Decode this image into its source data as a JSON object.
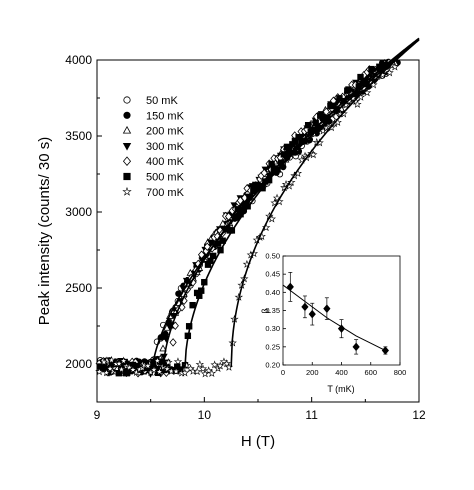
{
  "chart_data": [
    {
      "type": "scatter",
      "title": "",
      "xlabel": "H (T)",
      "ylabel": "Peak intensity (counts/ 30 s)",
      "xlim": [
        9,
        12
      ],
      "ylim": [
        1750,
        4000
      ],
      "xticks": [
        9,
        10,
        11,
        12
      ],
      "yticks": [
        2000,
        2500,
        3000,
        3500,
        4000
      ],
      "grid": false,
      "legend": "top-left",
      "series": [
        {
          "name": "50 mK",
          "marker": "circle-open",
          "onset": 9.52
        },
        {
          "name": "150 mK",
          "marker": "circle-filled",
          "onset": 9.55
        },
        {
          "name": "200 mK",
          "marker": "triangle-up-open",
          "onset": 9.58
        },
        {
          "name": "300 mK",
          "marker": "triangle-down-filled",
          "onset": 9.62
        },
        {
          "name": "400 mK",
          "marker": "diamond-open",
          "onset": 9.68
        },
        {
          "name": "500 mK",
          "marker": "square-filled",
          "onset": 9.82
        },
        {
          "name": "700 mK",
          "marker": "star-open",
          "onset": 10.25
        }
      ],
      "fit_curves": [
        {
          "onset": 9.52,
          "beta": 0.42
        },
        {
          "onset": 9.62,
          "beta": 0.36
        },
        {
          "onset": 9.82,
          "beta": 0.3
        },
        {
          "onset": 10.25,
          "beta": 0.24
        }
      ],
      "baseline": 1980,
      "amplitude": 2270
    },
    {
      "type": "scatter",
      "title": "",
      "xlabel": "T (mK)",
      "ylabel": "β",
      "xlim": [
        0,
        800
      ],
      "ylim": [
        0.2,
        0.5
      ],
      "xticks": [
        0,
        200,
        400,
        600,
        800
      ],
      "yticks": [
        0.2,
        0.25,
        0.3,
        0.35,
        0.4,
        0.45,
        0.5
      ],
      "grid": false,
      "points": [
        {
          "x": 50,
          "y": 0.415,
          "err": 0.04
        },
        {
          "x": 150,
          "y": 0.36,
          "err": 0.03
        },
        {
          "x": 200,
          "y": 0.34,
          "err": 0.03
        },
        {
          "x": 300,
          "y": 0.355,
          "err": 0.03
        },
        {
          "x": 400,
          "y": 0.3,
          "err": 0.025
        },
        {
          "x": 500,
          "y": 0.25,
          "err": 0.02
        },
        {
          "x": 700,
          "y": 0.24,
          "err": 0.01
        }
      ],
      "fit": {
        "T": [
          0,
          100,
          200,
          300,
          400,
          500,
          600,
          700
        ],
        "beta": [
          0.42,
          0.39,
          0.36,
          0.33,
          0.305,
          0.28,
          0.26,
          0.24
        ]
      }
    }
  ]
}
